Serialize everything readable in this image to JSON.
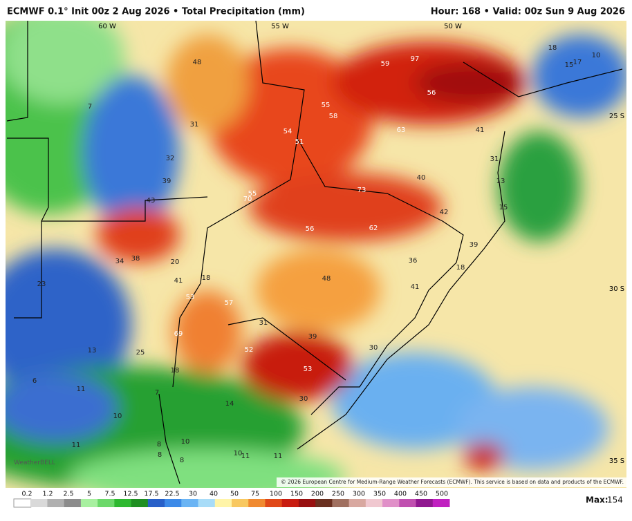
{
  "header": {
    "left": "ECMWF 0.1° Init 00z 2 Aug 2026 • Total Precipitation (mm)",
    "right": "Hour: 168 • Valid: 00z Sun 9 Aug 2026"
  },
  "map": {
    "coords": [
      "60 W",
      "55 W",
      "50 W",
      "25 S",
      "30 S",
      "35 S"
    ],
    "labels": [
      48,
      59,
      97,
      18,
      10,
      15,
      17,
      56,
      55,
      58,
      63,
      41,
      54,
      51,
      31,
      7,
      32,
      31,
      40,
      39,
      55,
      70,
      73,
      13,
      43,
      42,
      15,
      56,
      62,
      39,
      34,
      38,
      20,
      36,
      18,
      23,
      41,
      18,
      48,
      41,
      53,
      57,
      31,
      39,
      69,
      52,
      30,
      13,
      25,
      53,
      18,
      6,
      11,
      7,
      14,
      30,
      10,
      10,
      11,
      8,
      8,
      10,
      11,
      11,
      8
    ],
    "logo": "WeatherBELL",
    "copyright": "© 2026 European Centre for Medium-Range Weather Forecasts (ECMWF). This service is based on data and products of the ECMWF."
  },
  "legend": {
    "ticks": [
      0.2,
      1.2,
      2.5,
      5,
      7.5,
      12.5,
      17.5,
      22.5,
      30,
      40,
      50,
      75,
      100,
      150,
      200,
      250,
      300,
      350,
      400,
      450,
      500
    ],
    "colors": [
      "#ffffff",
      "#d9d9d9",
      "#b0b0b0",
      "#8c8c8c",
      "#a8f0a0",
      "#6cd86a",
      "#2eb830",
      "#1f8f22",
      "#2860c8",
      "#3c8ae8",
      "#6ab4f4",
      "#a8dcf8",
      "#fff4a8",
      "#f8c860",
      "#f08a30",
      "#e04818",
      "#c81c10",
      "#981010",
      "#6a3020",
      "#a07060",
      "#d8a8a0",
      "#f0c8d0",
      "#e090c8",
      "#c050b0",
      "#901890",
      "#c020c0"
    ]
  },
  "footer": {
    "max_label": "Max:",
    "max_value": 154
  }
}
